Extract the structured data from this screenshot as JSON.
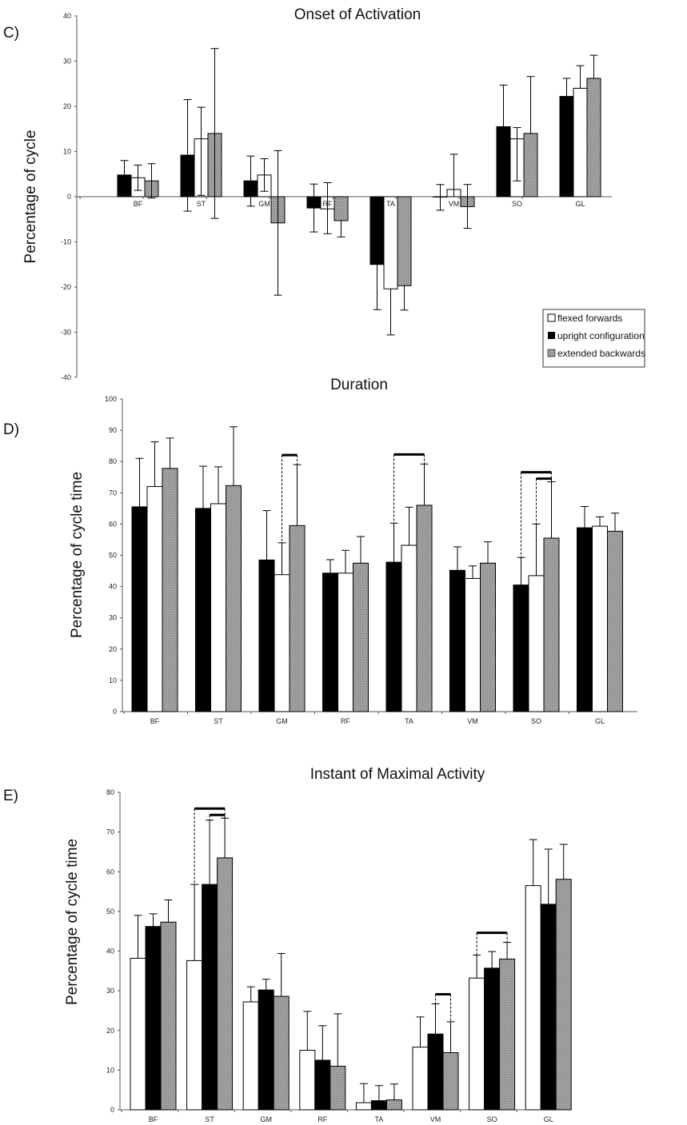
{
  "colors": {
    "flexed": "#ffffff",
    "upright": "#000000",
    "extended": "#9a9a9a",
    "axis": "#555555"
  },
  "legend": {
    "items": [
      "flexed forwards",
      "upright configuration",
      "extended backwards"
    ]
  },
  "chart_data": [
    {
      "panel": "C)",
      "type": "bar",
      "title": "Onset of Activation",
      "ylabel": "Percentage of cycle",
      "ylim": [
        -40,
        40
      ],
      "yticks": [
        -40,
        -30,
        -20,
        -10,
        0,
        10,
        20,
        30,
        40
      ],
      "categories": [
        "BF",
        "ST",
        "GM",
        "RF",
        "TA",
        "VM",
        "SO",
        "GL"
      ],
      "series": [
        {
          "key": "upright",
          "values": [
            4.8,
            9.2,
            3.5,
            -2.5,
            -15.0,
            0.0,
            15.5,
            22.2
          ],
          "err_up": [
            3.2,
            12.3,
            5.5,
            5.3,
            0,
            2.7,
            9.2,
            4.0
          ],
          "err_down": [
            0,
            12.4,
            5.6,
            5.3,
            10.0,
            3.0,
            0,
            0
          ]
        },
        {
          "key": "flexed",
          "values": [
            4.2,
            12.8,
            4.8,
            -2.7,
            -20.4,
            1.6,
            12.8,
            24.0
          ],
          "err_up": [
            2.8,
            7.0,
            3.6,
            5.8,
            0,
            7.8,
            2.5,
            5.0
          ],
          "err_down": [
            2.8,
            12.5,
            3.6,
            5.5,
            10.2,
            1.6,
            9.3,
            0
          ]
        },
        {
          "key": "extended",
          "values": [
            3.5,
            14.0,
            -5.8,
            -5.3,
            -19.7,
            -2.2,
            14.0,
            26.2
          ],
          "err_up": [
            3.8,
            18.8,
            16.0,
            0,
            0,
            4.9,
            12.6,
            5.1
          ],
          "err_down": [
            3.8,
            18.8,
            16.0,
            3.6,
            5.4,
            4.8,
            0,
            0
          ]
        }
      ]
    },
    {
      "panel": "D)",
      "type": "bar",
      "title": "Duration",
      "ylabel": "Percentage of cycle time",
      "ylim": [
        0,
        100
      ],
      "yticks": [
        0,
        10,
        20,
        30,
        40,
        50,
        60,
        70,
        80,
        90,
        100
      ],
      "categories": [
        "BF",
        "ST",
        "GM",
        "RF",
        "TA",
        "VM",
        "SO",
        "GL"
      ],
      "series": [
        {
          "key": "upright",
          "values": [
            65.5,
            65.0,
            48.5,
            44.3,
            47.8,
            45.2,
            40.5,
            58.8
          ],
          "err_up": [
            15.5,
            13.5,
            15.8,
            4.3,
            12.5,
            7.5,
            8.8,
            6.8
          ]
        },
        {
          "key": "flexed",
          "values": [
            72.0,
            66.5,
            43.8,
            44.3,
            53.2,
            42.6,
            43.5,
            59.3
          ],
          "err_up": [
            14.3,
            11.8,
            10.2,
            7.3,
            12.2,
            4.0,
            16.5,
            3.0
          ]
        },
        {
          "key": "extended",
          "values": [
            77.8,
            72.3,
            59.5,
            47.5,
            66.0,
            47.5,
            55.5,
            57.7
          ],
          "err_up": [
            9.7,
            18.8,
            19.5,
            8.5,
            13.2,
            6.8,
            18.0,
            5.8
          ]
        }
      ],
      "significance": [
        {
          "category": 2,
          "pairs": [
            [
              1,
              2
            ]
          ]
        },
        {
          "category": 4,
          "pairs": [
            [
              0,
              2
            ]
          ]
        },
        {
          "category": 6,
          "pairs": [
            [
              0,
              2
            ],
            [
              1,
              2
            ]
          ]
        }
      ]
    },
    {
      "panel": "E)",
      "type": "bar",
      "title": "Instant of Maximal Activity",
      "ylabel": "Percentage of cycle time",
      "ylim": [
        0,
        80
      ],
      "yticks": [
        0,
        10,
        20,
        30,
        40,
        50,
        60,
        70,
        80
      ],
      "categories": [
        "BF",
        "ST",
        "GM",
        "RF",
        "TA",
        "VM",
        "SO",
        "GL"
      ],
      "series": [
        {
          "key": "flexed",
          "values": [
            38.2,
            37.6,
            27.2,
            15.0,
            1.8,
            15.8,
            33.2,
            56.5
          ],
          "err_up": [
            10.8,
            19.2,
            3.8,
            9.8,
            4.8,
            7.6,
            5.8,
            11.6
          ]
        },
        {
          "key": "upright",
          "values": [
            46.2,
            56.8,
            30.2,
            12.5,
            2.3,
            19.1,
            35.7,
            51.8
          ],
          "err_up": [
            3.2,
            16.2,
            2.7,
            8.7,
            3.8,
            7.6,
            4.2,
            13.9
          ]
        },
        {
          "key": "extended",
          "values": [
            47.3,
            63.5,
            28.6,
            11.0,
            2.5,
            14.4,
            38.0,
            58.1
          ],
          "err_up": [
            5.6,
            10.0,
            10.8,
            13.2,
            4.0,
            7.8,
            4.2,
            8.8
          ]
        }
      ],
      "significance": [
        {
          "category": 1,
          "pairs": [
            [
              0,
              2
            ],
            [
              1,
              2
            ]
          ]
        },
        {
          "category": 5,
          "pairs": [
            [
              1,
              2
            ]
          ]
        },
        {
          "category": 6,
          "pairs": [
            [
              0,
              2
            ]
          ]
        }
      ]
    }
  ]
}
